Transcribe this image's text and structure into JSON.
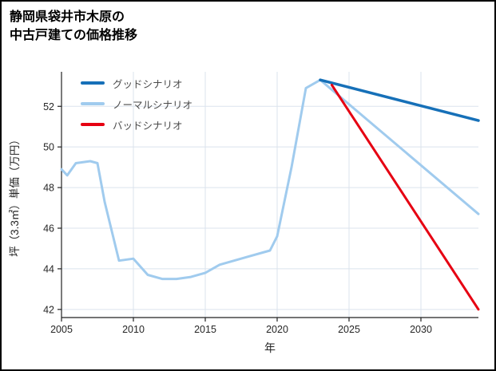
{
  "chart_data": {
    "type": "line",
    "title_lines": [
      "静岡県袋井市木原の",
      "中古戸建ての価格推移"
    ],
    "xlabel": "年",
    "ylabel": "坪（3.3㎡）単価（万円）",
    "xlim": [
      2005,
      2034
    ],
    "ylim": [
      41.6,
      53.7
    ],
    "xticks": [
      2005,
      2010,
      2015,
      2020,
      2025,
      2030
    ],
    "yticks": [
      42,
      44,
      46,
      48,
      50,
      52
    ],
    "grid": true,
    "legend_position": "upper-left",
    "colors": {
      "good": "#1670b8",
      "normal": "#a0cbee",
      "bad": "#e60012",
      "grid": "#dbe3ed",
      "spine": "#222222",
      "tick_text": "#262626"
    },
    "series": [
      {
        "key": "history",
        "name": "",
        "in_legend": false,
        "color": "#a0cbee",
        "width": 3,
        "x": [
          2005,
          2005.4,
          2006,
          2007,
          2007.5,
          2008,
          2009,
          2010,
          2011,
          2012,
          2013,
          2014,
          2015,
          2016,
          2017,
          2018,
          2019,
          2019.5,
          2020,
          2021,
          2022,
          2023
        ],
        "values": [
          48.9,
          48.6,
          49.2,
          49.3,
          49.2,
          47.3,
          44.4,
          44.5,
          43.7,
          43.5,
          43.5,
          43.6,
          43.8,
          44.2,
          44.4,
          44.6,
          44.8,
          44.9,
          45.6,
          49.0,
          52.9,
          53.3
        ]
      },
      {
        "key": "normal",
        "name": "ノーマルシナリオ",
        "in_legend": true,
        "color": "#a0cbee",
        "width": 3,
        "x": [
          2023,
          2034
        ],
        "values": [
          53.3,
          46.7
        ]
      },
      {
        "key": "good",
        "name": "グッドシナリオ",
        "in_legend": true,
        "color": "#1670b8",
        "width": 3.5,
        "x": [
          2023,
          2034
        ],
        "values": [
          53.3,
          51.3
        ]
      },
      {
        "key": "bad",
        "name": "バッドシナリオ",
        "in_legend": true,
        "color": "#e60012",
        "width": 3,
        "x": [
          2023.8,
          2034
        ],
        "values": [
          53.05,
          42.0
        ]
      }
    ],
    "legend_order": [
      "good",
      "normal",
      "bad"
    ]
  }
}
